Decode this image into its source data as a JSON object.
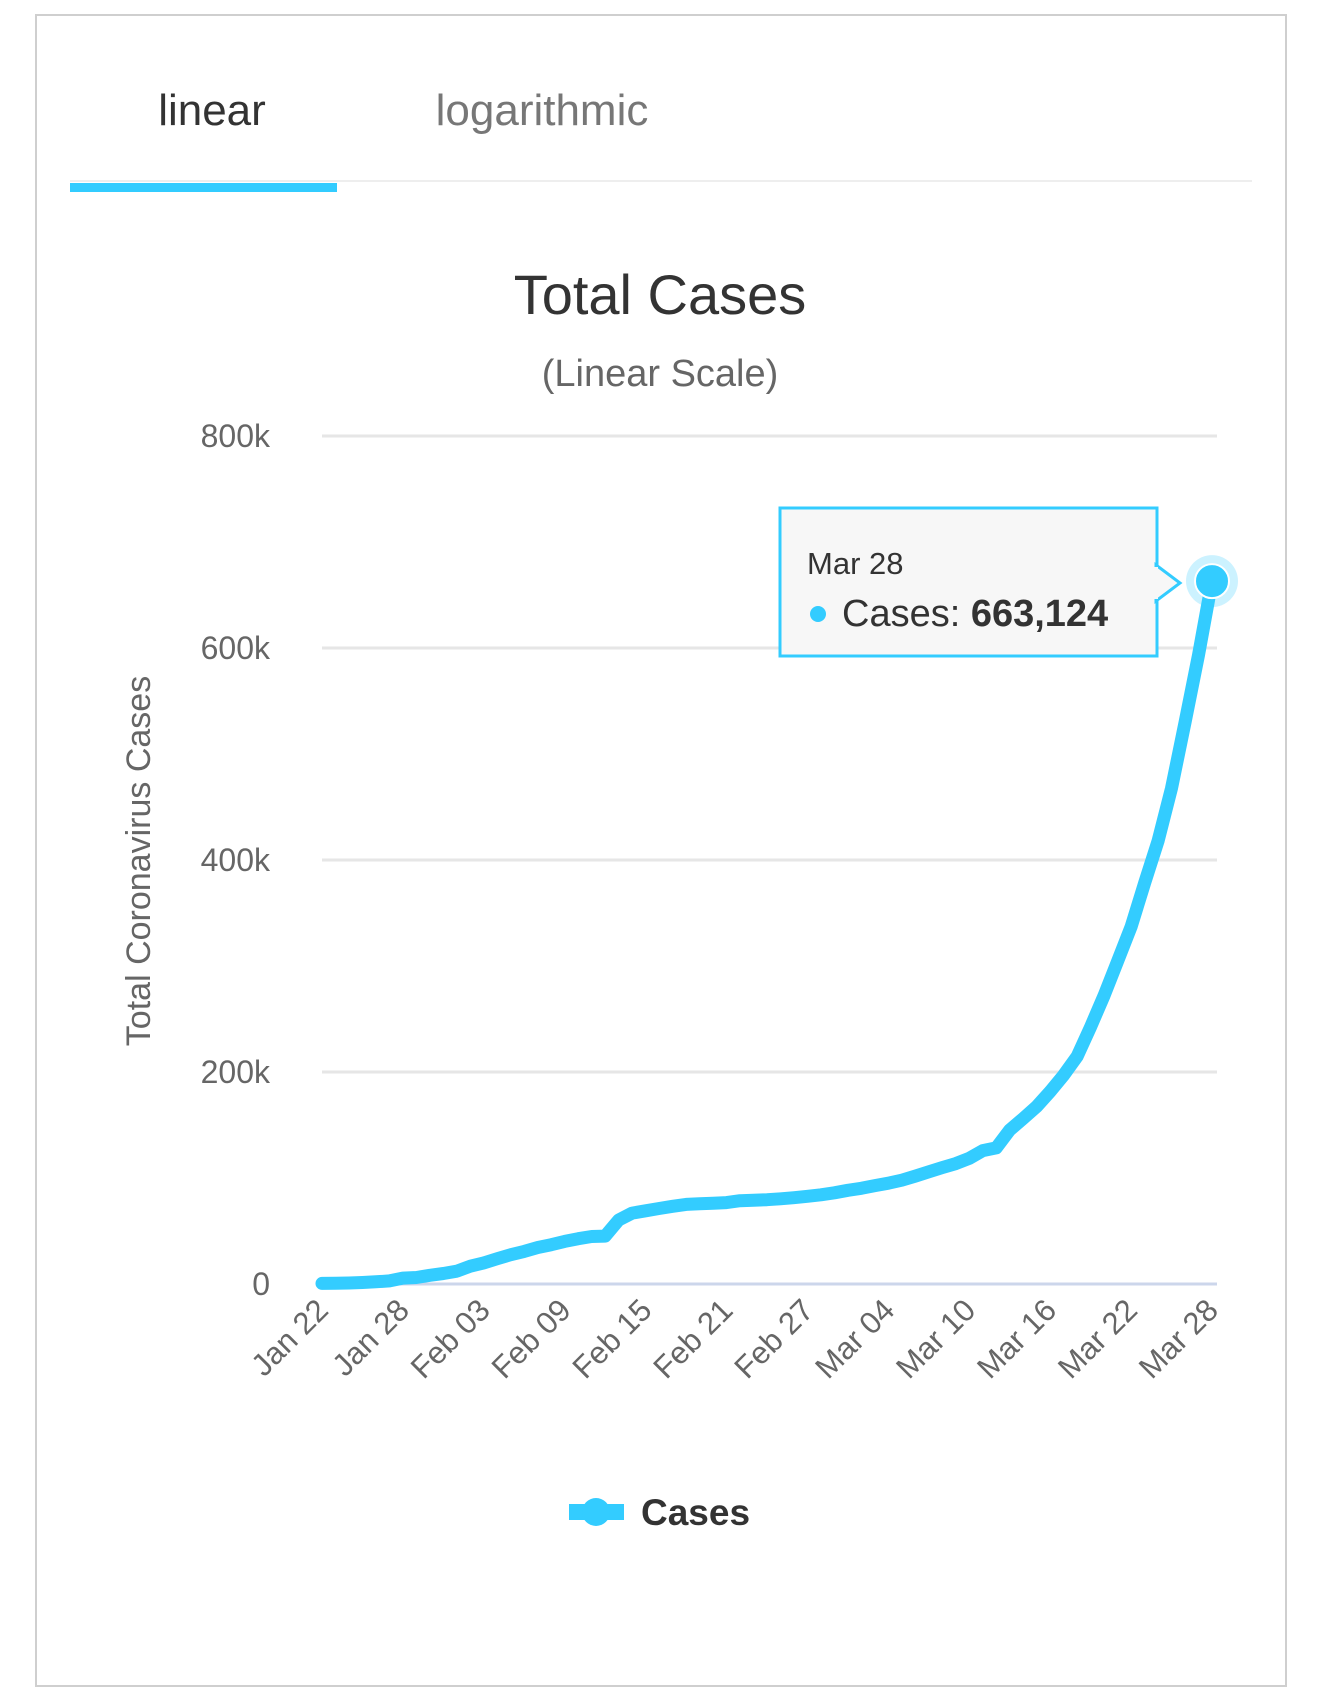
{
  "tabs": [
    {
      "label": "linear",
      "active": true
    },
    {
      "label": "logarithmic",
      "active": false
    }
  ],
  "chart_data": {
    "type": "line",
    "title": "Total Cases",
    "subtitle": "(Linear Scale)",
    "ylabel": "Total Coronavirus Cases",
    "xlabel": "",
    "ylim": [
      0,
      800000
    ],
    "yticks": [
      0,
      200000,
      400000,
      600000,
      800000
    ],
    "ytick_labels": [
      "0",
      "200k",
      "400k",
      "600k",
      "800k"
    ],
    "xtick_labels": [
      "Jan 22",
      "Jan 28",
      "Feb 03",
      "Feb 09",
      "Feb 15",
      "Feb 21",
      "Feb 27",
      "Mar 04",
      "Mar 10",
      "Mar 16",
      "Mar 22",
      "Mar 28"
    ],
    "xtick_every_days": 6,
    "grid": true,
    "legend": {
      "position": "bottom-center",
      "entries": [
        "Cases"
      ]
    },
    "color": "#33ccff",
    "series": [
      {
        "name": "Cases",
        "values": [
          555,
          654,
          941,
          1434,
          2118,
          2927,
          5578,
          6166,
          8234,
          9927,
          12038,
          16787,
          19881,
          23892,
          27635,
          30794,
          34391,
          37120,
          40150,
          42762,
          44802,
          45221,
          60368,
          66885,
          69030,
          71224,
          73258,
          75136,
          75639,
          76197,
          76819,
          78572,
          78958,
          79561,
          80406,
          81388,
          82746,
          84112,
          86011,
          88369,
          90306,
          92840,
          95120,
          97886,
          101801,
          105847,
          109821,
          113590,
          118620,
          125875,
          128352,
          145205,
          156101,
          167454,
          181574,
          197102,
          214821,
          242570,
          272208,
          304507,
          336953,
          378235,
          418045,
          467653,
          529591,
          593291,
          663124
        ]
      }
    ],
    "tooltip": {
      "date": "Mar 28",
      "label": "Cases: ",
      "value": "663,124"
    }
  }
}
